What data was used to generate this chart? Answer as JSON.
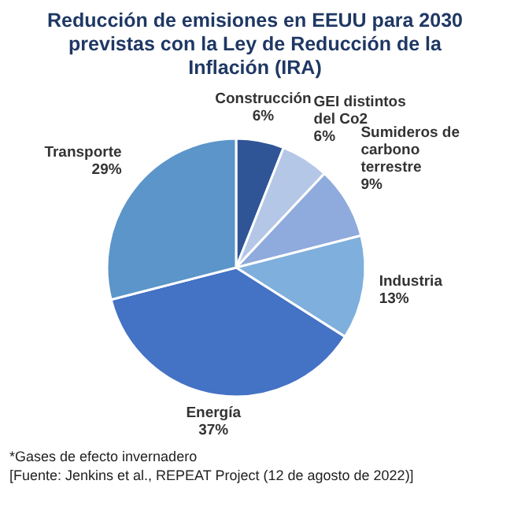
{
  "chart_data": {
    "type": "pie",
    "title": "Reducción de emisiones en EEUU para 2030 previstas con la Ley de Reducción de la Inflación (IRA)",
    "categories": [
      "Construcción",
      "GEI distintos del Co2",
      "Sumideros de carbono terrestre",
      "Industria",
      "Energía",
      "Transporte"
    ],
    "values": [
      6,
      6,
      9,
      13,
      37,
      29
    ],
    "colors": [
      "#2f5597",
      "#b4c7e7",
      "#8faadc",
      "#7fafdc",
      "#4472c4",
      "#5b95c9"
    ],
    "value_labels": [
      "6%",
      "6%",
      "9%",
      "13%",
      "37%",
      "29%"
    ],
    "annotations": [
      "*Gases de efecto invernadero",
      "[Fuente: Jenkins et al., REPEAT Project (12 de agosto de 2022)]"
    ]
  }
}
